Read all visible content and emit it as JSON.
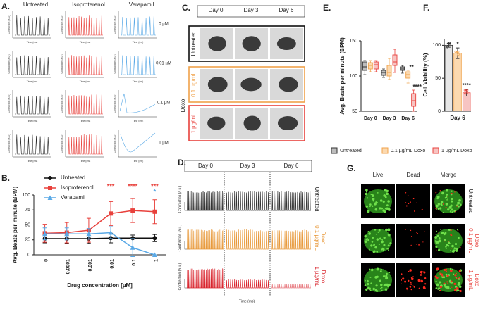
{
  "labels": {
    "a": "A.",
    "b": "B.",
    "c": "C.",
    "d": "D.",
    "e": "E.",
    "f": "F.",
    "g": "G."
  },
  "panel_a": {
    "columns": [
      "Untreated",
      "Isoproterenol",
      "Verapamil"
    ],
    "rows": [
      "0 µM",
      "0.01 µM",
      "0.1 µM",
      "1 µM"
    ],
    "y_label": "Contraction (a.u.)",
    "x_label": "Time (ms)"
  },
  "panel_c": {
    "columns": [
      "Day 0",
      "Day 3",
      "Day 6"
    ],
    "rows": [
      "Untreated",
      "0.1 µg/mL",
      "1 µg/mL"
    ],
    "group": "Doxo"
  },
  "panel_d": {
    "columns": [
      "Day 0",
      "Day 3",
      "Day 6"
    ],
    "rows": [
      [
        "Untreated"
      ],
      [
        "0.1 µg/mL",
        "Doxo"
      ],
      [
        "1 µg/mL",
        "Doxo"
      ]
    ],
    "y_label": "Contraction (a.u.)",
    "x_label": "Time (ms)"
  },
  "panel_g": {
    "columns": [
      "Live",
      "Dead",
      "Merge"
    ],
    "rows": [
      [
        "Untreated"
      ],
      [
        "0.1 µg/mL",
        "Doxo"
      ],
      [
        "1 µg/mL",
        "Doxo"
      ]
    ]
  },
  "chart_data": [
    {
      "type": "line",
      "categories": [
        "0",
        "0.0001",
        "0.001",
        "0.01",
        "0.1",
        "1"
      ],
      "xlabel": "Drug concentration [µM]",
      "ylabel": "Avg. Beats per minute (BPM)",
      "ylim": [
        0,
        100
      ],
      "yticks": [
        0,
        25,
        50,
        75,
        100
      ],
      "legend": "upper left",
      "series": [
        {
          "name": "Untreated",
          "color": "#111111",
          "marker": "circle",
          "values": [
            27,
            27,
            27,
            28,
            28,
            28
          ],
          "errors": [
            7,
            8,
            8,
            8,
            5,
            6
          ],
          "annotations": [
            null,
            null,
            null,
            null,
            null,
            null
          ]
        },
        {
          "name": "Isoproterenol",
          "color": "#e8413c",
          "marker": "square",
          "values": [
            36,
            37,
            41,
            69,
            74,
            72
          ],
          "errors": [
            15,
            17,
            20,
            20,
            20,
            20
          ],
          "annotations": [
            null,
            null,
            null,
            "***",
            "****",
            "***"
          ]
        },
        {
          "name": "Verapamil",
          "color": "#5aa9e6",
          "marker": "triangle",
          "values": [
            35,
            35,
            35,
            37,
            12,
            0
          ],
          "errors": [
            10,
            10,
            9,
            10,
            15,
            0
          ],
          "annotations": [
            null,
            null,
            null,
            null,
            null,
            "*"
          ]
        }
      ]
    },
    {
      "type": "box",
      "categories": [
        "Day 0",
        "Day 3",
        "Day 6"
      ],
      "ylabel": "Avg. Beats per minute (BPM)",
      "ylim": [
        50,
        150
      ],
      "yticks": [
        50,
        100,
        150
      ],
      "legend": "bottom",
      "series": [
        {
          "name": "Untreated",
          "color": "#333333",
          "fill": "#bdbdbd",
          "values": [
            {
              "min": 102,
              "q1": 108,
              "median": 113,
              "q3": 120,
              "max": 122
            },
            {
              "min": 98,
              "q1": 101,
              "median": 105,
              "q3": 108,
              "max": 110
            },
            {
              "min": 104,
              "q1": 108,
              "median": 110,
              "q3": 113,
              "max": 115
            }
          ],
          "annotations": [
            null,
            null,
            null
          ]
        },
        {
          "name": "0.1 µg/mL Doxo",
          "color": "#f0a24a",
          "fill": "#fbd9b0",
          "values": [
            {
              "min": 106,
              "q1": 110,
              "median": 115,
              "q3": 119,
              "max": 122
            },
            {
              "min": 95,
              "q1": 100,
              "median": 105,
              "q3": 115,
              "max": 125
            },
            {
              "min": 90,
              "q1": 97,
              "median": 102,
              "q3": 106,
              "max": 108
            }
          ],
          "annotations": [
            null,
            null,
            "**"
          ]
        },
        {
          "name": "1 µg/mL Doxo",
          "color": "#e8413c",
          "fill": "#f7c4c2",
          "values": [
            {
              "min": 106,
              "q1": 110,
              "median": 116,
              "q3": 120,
              "max": 122
            },
            {
              "min": 105,
              "q1": 115,
              "median": 120,
              "q3": 130,
              "max": 138
            },
            {
              "min": 50,
              "q1": 57,
              "median": 65,
              "q3": 75,
              "max": 80
            }
          ],
          "annotations": [
            null,
            null,
            "****"
          ]
        }
      ]
    },
    {
      "type": "bar",
      "categories": [
        null,
        null,
        null
      ],
      "xlabel": "Day 6",
      "ylabel": "Cell Viability (%)",
      "ylim": [
        0,
        110
      ],
      "yticks": [
        0,
        50,
        100
      ],
      "values": [
        100,
        88,
        28
      ],
      "errors": [
        3,
        8,
        5
      ],
      "annotations": [
        null,
        "*",
        "****"
      ],
      "colors": [
        "#e6e6e6",
        "#fbd9b0",
        "#f7c4c2"
      ],
      "edge_colors": [
        "#333333",
        "#f0a24a",
        "#e8413c"
      ]
    }
  ]
}
